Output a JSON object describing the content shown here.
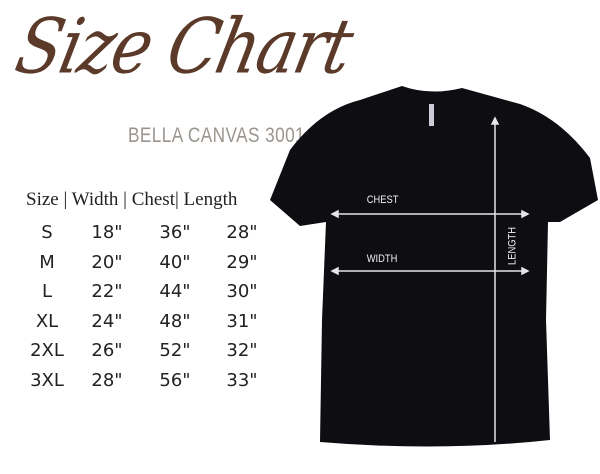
{
  "title": "Size Chart",
  "subtitle": "BELLA CANVAS 3001",
  "table": {
    "header": "Size | Width | Chest| Length",
    "rows": [
      {
        "size": "S",
        "width": "18\"",
        "chest": "36\"",
        "length": "28\""
      },
      {
        "size": "M",
        "width": "20\"",
        "chest": "40\"",
        "length": "29\""
      },
      {
        "size": "L",
        "width": "22\"",
        "chest": "44\"",
        "length": "30\""
      },
      {
        "size": "XL",
        "width": "24\"",
        "chest": "48\"",
        "length": "31\""
      },
      {
        "size": "2XL",
        "width": "26\"",
        "chest": "52\"",
        "length": "32\""
      },
      {
        "size": "3XL",
        "width": "28\"",
        "chest": "56\"",
        "length": "33\""
      }
    ]
  },
  "diagram": {
    "chest": "CHEST",
    "width": "WIDTH",
    "length": "LENGTH"
  },
  "colors": {
    "title": "#5b3a29",
    "subtitle": "#9a948e",
    "shirt": "#0d0d12"
  }
}
